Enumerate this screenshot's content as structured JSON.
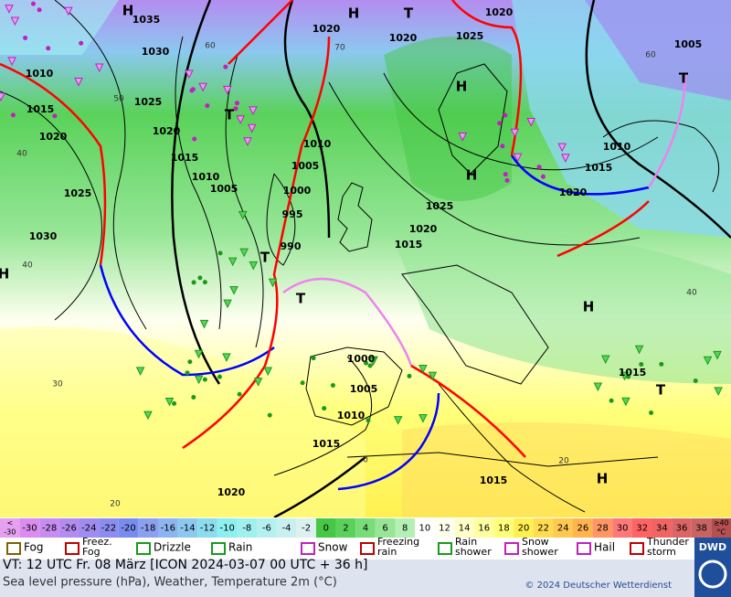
{
  "map": {
    "pressure_labels": [
      "1035",
      "1030",
      "1025",
      "1020",
      "1015",
      "1010",
      "1005",
      "1000",
      "995",
      "990",
      "1010",
      "1005",
      "1020",
      "1020",
      "1025",
      "1020",
      "1005",
      "1010",
      "1015",
      "1020",
      "1025",
      "1020",
      "1015",
      "1010",
      "1015",
      "1020",
      "1025",
      "1030",
      "1000",
      "1005",
      "1010",
      "1015",
      "1020",
      "1015",
      "1015"
    ],
    "centers": [
      "H",
      "H",
      "T",
      "H",
      "H",
      "T",
      "T",
      "T",
      "H",
      "T",
      "H",
      "T",
      "H"
    ],
    "grid_labels": [
      "60",
      "70",
      "50",
      "40",
      "60",
      "40",
      "30",
      "20",
      "40",
      "20",
      "0"
    ]
  },
  "legend": {
    "temp_low_label": [
      "<",
      "-30"
    ],
    "temp_low_color": "#e6a0f0",
    "temp_labels": [
      "-30",
      "-28",
      "-26",
      "-24",
      "-22",
      "-20",
      "-18",
      "-16",
      "-14",
      "-12",
      "-10",
      "-8",
      "-6",
      "-4",
      "-2",
      "0",
      "2",
      "4",
      "6",
      "8",
      "10",
      "12",
      "14",
      "16",
      "18",
      "20",
      "22",
      "24",
      "26",
      "28",
      "30",
      "32",
      "34",
      "36",
      "38"
    ],
    "temp_colors": [
      "#dc8cf0",
      "#c88cf0",
      "#b48cf0",
      "#a08cf0",
      "#8c8cf0",
      "#788cf0",
      "#8ca0f0",
      "#8cb4f0",
      "#8cc8f0",
      "#8cdcf0",
      "#8cf0f0",
      "#a0f0f0",
      "#b4f0f0",
      "#c8f0f0",
      "#dcf0f0",
      "#46c846",
      "#5ad25a",
      "#78dc78",
      "#96e696",
      "#b4f0b4",
      "#ffffff",
      "#fffff0",
      "#ffffc8",
      "#ffffa0",
      "#ffff78",
      "#fff050",
      "#ffdc50",
      "#ffc850",
      "#ffb450",
      "#ff9664",
      "#ff7878",
      "#ff6464",
      "#f06464",
      "#dc6464",
      "#c86464"
    ],
    "temp_high_label": [
      "≥40",
      "°C"
    ],
    "temp_high_color": "#b45050",
    "weather": [
      [
        "Fog"
      ],
      [
        "Freez.",
        "Fog"
      ],
      [
        "Drizzle"
      ],
      [
        "Rain"
      ],
      [
        "Snow"
      ],
      [
        "Freezing",
        "rain"
      ],
      [
        "Rain",
        "shower"
      ],
      [
        "Snow",
        "shower"
      ],
      [
        "Hail"
      ],
      [
        "Thunder",
        "storm"
      ]
    ]
  },
  "footer": {
    "valid_time": "VT: 12 UTC Fr.  08 März [ICON 2024-03-07  00 UTC + 36 h]",
    "description": "Sea level pressure (hPa), Weather, Temperature 2m (°C)",
    "copyright": "© 2024 Deutscher Wetterdienst",
    "logo": "DWD"
  }
}
